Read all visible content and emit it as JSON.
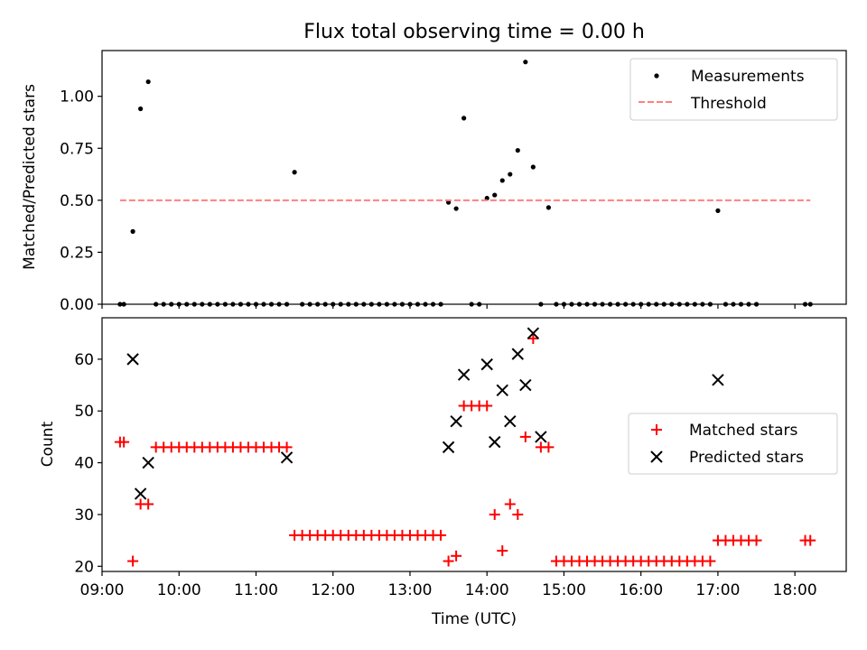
{
  "chart_data": [
    {
      "type": "scatter",
      "title": "Flux total observing time = 0.00 h",
      "xlabel": "",
      "ylabel": "Matched/Predicted stars",
      "xlim": [
        "09:00",
        "18:40"
      ],
      "ylim": [
        0,
        1.22
      ],
      "x_tick_labels": [],
      "y_ticks": [
        0,
        0.25,
        0.5,
        0.75,
        1.0
      ],
      "y_tick_labels": [
        "0.00",
        "0.25",
        "0.50",
        "0.75",
        "1.00"
      ],
      "legend_position": "top-right",
      "series": [
        {
          "name": "Measurements",
          "marker": "dot",
          "color": "#000000",
          "x": [
            "09:14",
            "09:17",
            "09:24",
            "09:30",
            "09:36",
            "09:42",
            "09:48",
            "09:54",
            "10:00",
            "10:06",
            "10:12",
            "10:18",
            "10:24",
            "10:30",
            "10:36",
            "10:42",
            "10:48",
            "10:54",
            "11:00",
            "11:06",
            "11:12",
            "11:18",
            "11:24",
            "11:30",
            "11:36",
            "11:42",
            "11:48",
            "11:54",
            "12:00",
            "12:06",
            "12:12",
            "12:18",
            "12:24",
            "12:30",
            "12:36",
            "12:42",
            "12:48",
            "12:54",
            "13:00",
            "13:06",
            "13:12",
            "13:18",
            "13:24",
            "13:30",
            "13:36",
            "13:42",
            "13:48",
            "13:54",
            "14:00",
            "14:06",
            "14:12",
            "14:18",
            "14:24",
            "14:30",
            "14:36",
            "14:42",
            "14:48",
            "14:54",
            "15:00",
            "15:06",
            "15:12",
            "15:18",
            "15:24",
            "15:30",
            "15:36",
            "15:42",
            "15:48",
            "15:54",
            "16:00",
            "16:06",
            "16:12",
            "16:18",
            "16:24",
            "16:30",
            "16:36",
            "16:42",
            "16:48",
            "16:54",
            "17:00",
            "17:06",
            "17:12",
            "17:18",
            "17:24",
            "17:30",
            "18:08",
            "18:12"
          ],
          "y": [
            0,
            0,
            0.35,
            0.94,
            1.07,
            0,
            0,
            0,
            0,
            0,
            0,
            0,
            0,
            0,
            0,
            0,
            0,
            0,
            0,
            0,
            0,
            0,
            0,
            0.635,
            0,
            0,
            0,
            0,
            0,
            0,
            0,
            0,
            0,
            0,
            0,
            0,
            0,
            0,
            0,
            0,
            0,
            0,
            0,
            0.49,
            0.46,
            0.895,
            0,
            0,
            0.51,
            0.525,
            0.595,
            0.625,
            0.74,
            1.165,
            0.66,
            0,
            0.465,
            0,
            0,
            0,
            0,
            0,
            0,
            0,
            0,
            0,
            0,
            0,
            0,
            0,
            0,
            0,
            0,
            0,
            0,
            0,
            0,
            0,
            0.45,
            0,
            0,
            0,
            0,
            0,
            0,
            0
          ]
        },
        {
          "name": "Threshold",
          "marker": "dashed-line",
          "color": "#ff7f7f",
          "x": [
            "09:14",
            "18:12"
          ],
          "y": [
            0.5,
            0.5
          ]
        }
      ]
    },
    {
      "type": "scatter",
      "title": "",
      "xlabel": "Time (UTC)",
      "ylabel": "Count",
      "xlim": [
        "09:00",
        "18:40"
      ],
      "ylim": [
        19,
        68
      ],
      "x_ticks": [
        "09:00",
        "10:00",
        "11:00",
        "12:00",
        "13:00",
        "14:00",
        "15:00",
        "16:00",
        "17:00",
        "18:00"
      ],
      "y_ticks": [
        20,
        30,
        40,
        50,
        60
      ],
      "legend_position": "center-right",
      "series": [
        {
          "name": "Matched stars",
          "marker": "plus",
          "color": "#ff0000",
          "x": [
            "09:14",
            "09:17",
            "09:24",
            "09:30",
            "09:36",
            "09:42",
            "09:48",
            "09:54",
            "10:00",
            "10:06",
            "10:12",
            "10:18",
            "10:24",
            "10:30",
            "10:36",
            "10:42",
            "10:48",
            "10:54",
            "11:00",
            "11:06",
            "11:12",
            "11:18",
            "11:24",
            "11:30",
            "11:36",
            "11:42",
            "11:48",
            "11:54",
            "12:00",
            "12:06",
            "12:12",
            "12:18",
            "12:24",
            "12:30",
            "12:36",
            "12:42",
            "12:48",
            "12:54",
            "13:00",
            "13:06",
            "13:12",
            "13:18",
            "13:24",
            "13:30",
            "13:36",
            "13:42",
            "13:48",
            "13:54",
            "14:00",
            "14:06",
            "14:12",
            "14:18",
            "14:24",
            "14:30",
            "14:36",
            "14:42",
            "14:48",
            "14:54",
            "15:00",
            "15:06",
            "15:12",
            "15:18",
            "15:24",
            "15:30",
            "15:36",
            "15:42",
            "15:48",
            "15:54",
            "16:00",
            "16:06",
            "16:12",
            "16:18",
            "16:24",
            "16:30",
            "16:36",
            "16:42",
            "16:48",
            "16:54",
            "17:00",
            "17:06",
            "17:12",
            "17:18",
            "17:24",
            "17:30",
            "18:08",
            "18:12"
          ],
          "y": [
            44,
            44,
            21,
            32,
            32,
            43,
            43,
            43,
            43,
            43,
            43,
            43,
            43,
            43,
            43,
            43,
            43,
            43,
            43,
            43,
            43,
            43,
            43,
            26,
            26,
            26,
            26,
            26,
            26,
            26,
            26,
            26,
            26,
            26,
            26,
            26,
            26,
            26,
            26,
            26,
            26,
            26,
            26,
            21,
            22,
            51,
            51,
            51,
            51,
            30,
            23,
            32,
            30,
            45,
            64,
            43,
            43,
            21,
            21,
            21,
            21,
            21,
            21,
            21,
            21,
            21,
            21,
            21,
            21,
            21,
            21,
            21,
            21,
            21,
            21,
            21,
            21,
            21,
            25,
            25,
            25,
            25,
            25,
            25,
            25,
            25
          ]
        },
        {
          "name": "Predicted stars",
          "marker": "x",
          "color": "#000000",
          "x": [
            "09:24",
            "09:30",
            "09:36",
            "11:24",
            "13:30",
            "13:36",
            "13:42",
            "14:00",
            "14:06",
            "14:12",
            "14:18",
            "14:24",
            "14:30",
            "14:36",
            "14:42",
            "17:00"
          ],
          "y": [
            60,
            34,
            40,
            41,
            43,
            48,
            57,
            59,
            44,
            54,
            48,
            61,
            55,
            65,
            45,
            56
          ]
        }
      ]
    }
  ]
}
